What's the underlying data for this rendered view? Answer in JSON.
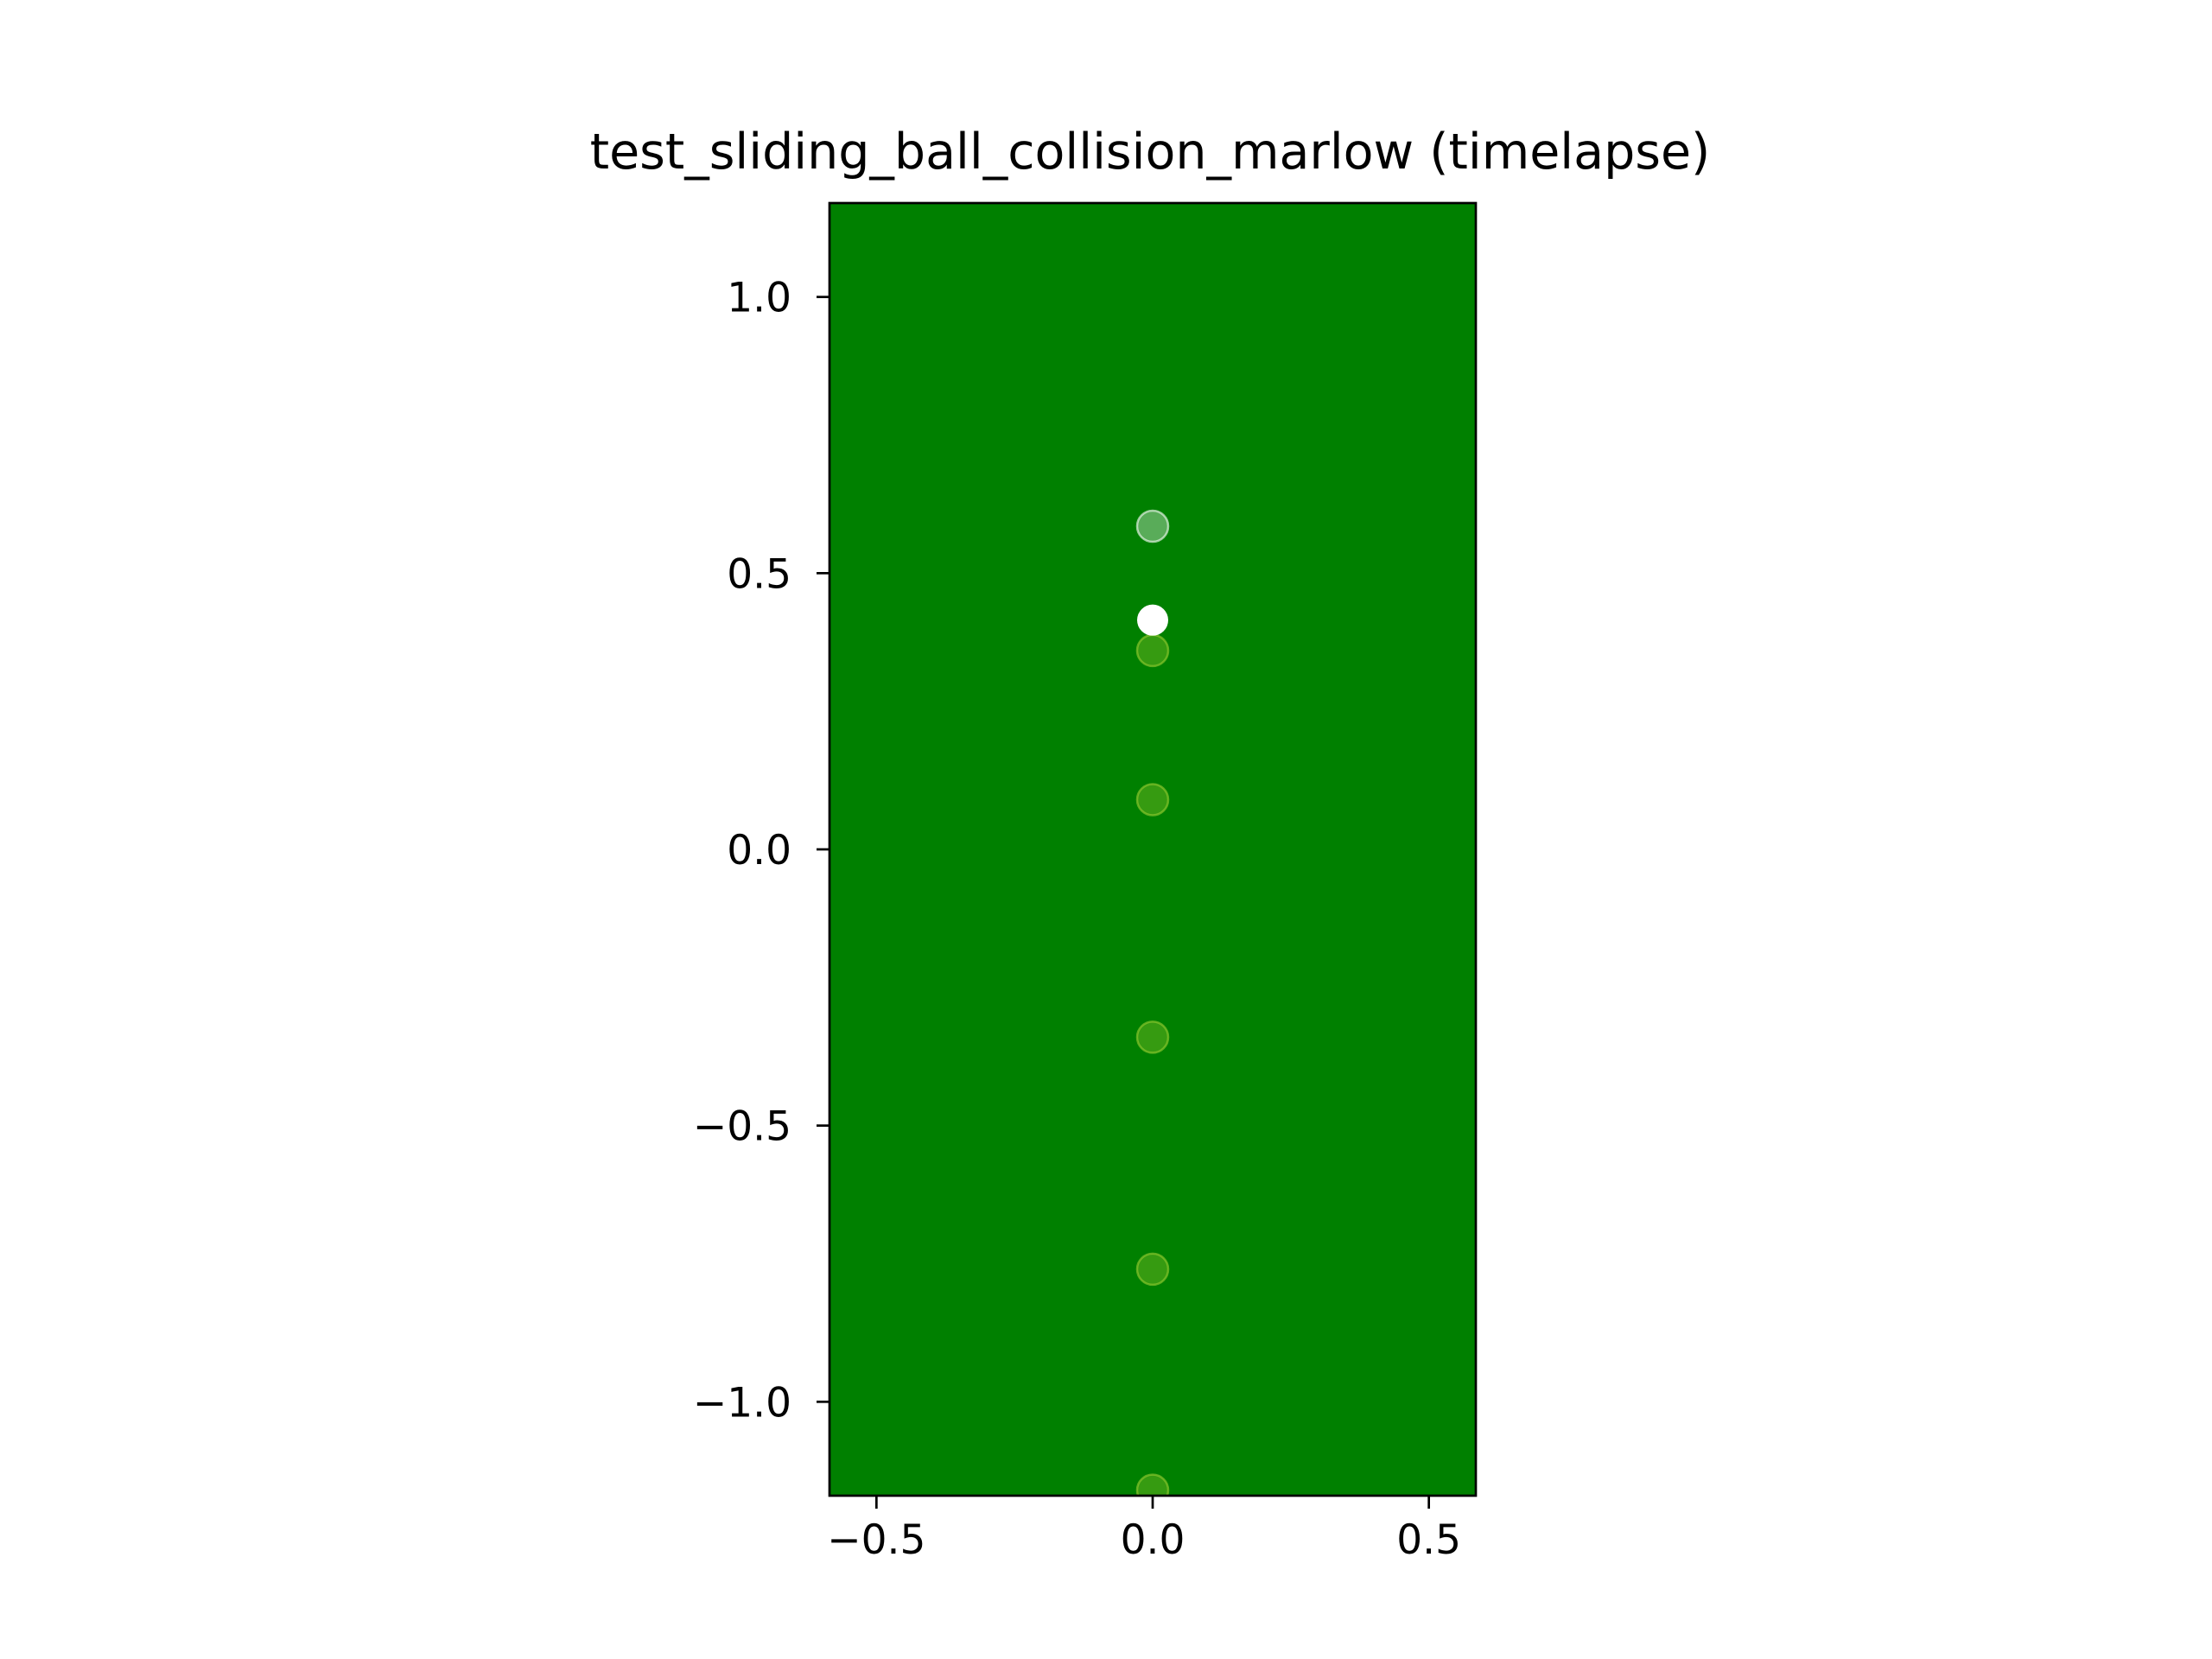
{
  "chart_data": {
    "type": "scatter",
    "title": "test_sliding_ball_collision_marlow (timelapse)",
    "xlabel": "",
    "ylabel": "",
    "xlim": [
      -0.585,
      0.585
    ],
    "ylim": [
      -1.17,
      1.17
    ],
    "grid": false,
    "legend": "none",
    "x_ticks": [
      {
        "value": -0.5,
        "label": "−0.5"
      },
      {
        "value": 0.0,
        "label": "0.0"
      },
      {
        "value": 0.5,
        "label": "0.5"
      }
    ],
    "y_ticks": [
      {
        "value": -1.0,
        "label": "−1.0"
      },
      {
        "value": -0.5,
        "label": "−0.5"
      },
      {
        "value": 0.0,
        "label": "0.0"
      },
      {
        "value": 0.5,
        "label": "0.5"
      },
      {
        "value": 1.0,
        "label": "1.0"
      }
    ],
    "background_color": "#008000",
    "series": [
      {
        "name": "trail",
        "color": "#9acd32",
        "opacity": 0.35,
        "points": [
          {
            "x": 0.0,
            "y": 0.36
          },
          {
            "x": 0.0,
            "y": 0.09
          },
          {
            "x": 0.0,
            "y": -0.34
          },
          {
            "x": 0.0,
            "y": -0.76
          },
          {
            "x": 0.0,
            "y": -1.16
          }
        ]
      },
      {
        "name": "ghost",
        "color": "#ffffff",
        "opacity": 0.35,
        "points": [
          {
            "x": 0.0,
            "y": 0.585
          }
        ]
      },
      {
        "name": "ball",
        "color": "#ffffff",
        "opacity": 1.0,
        "points": [
          {
            "x": 0.0,
            "y": 0.415
          }
        ]
      }
    ]
  }
}
